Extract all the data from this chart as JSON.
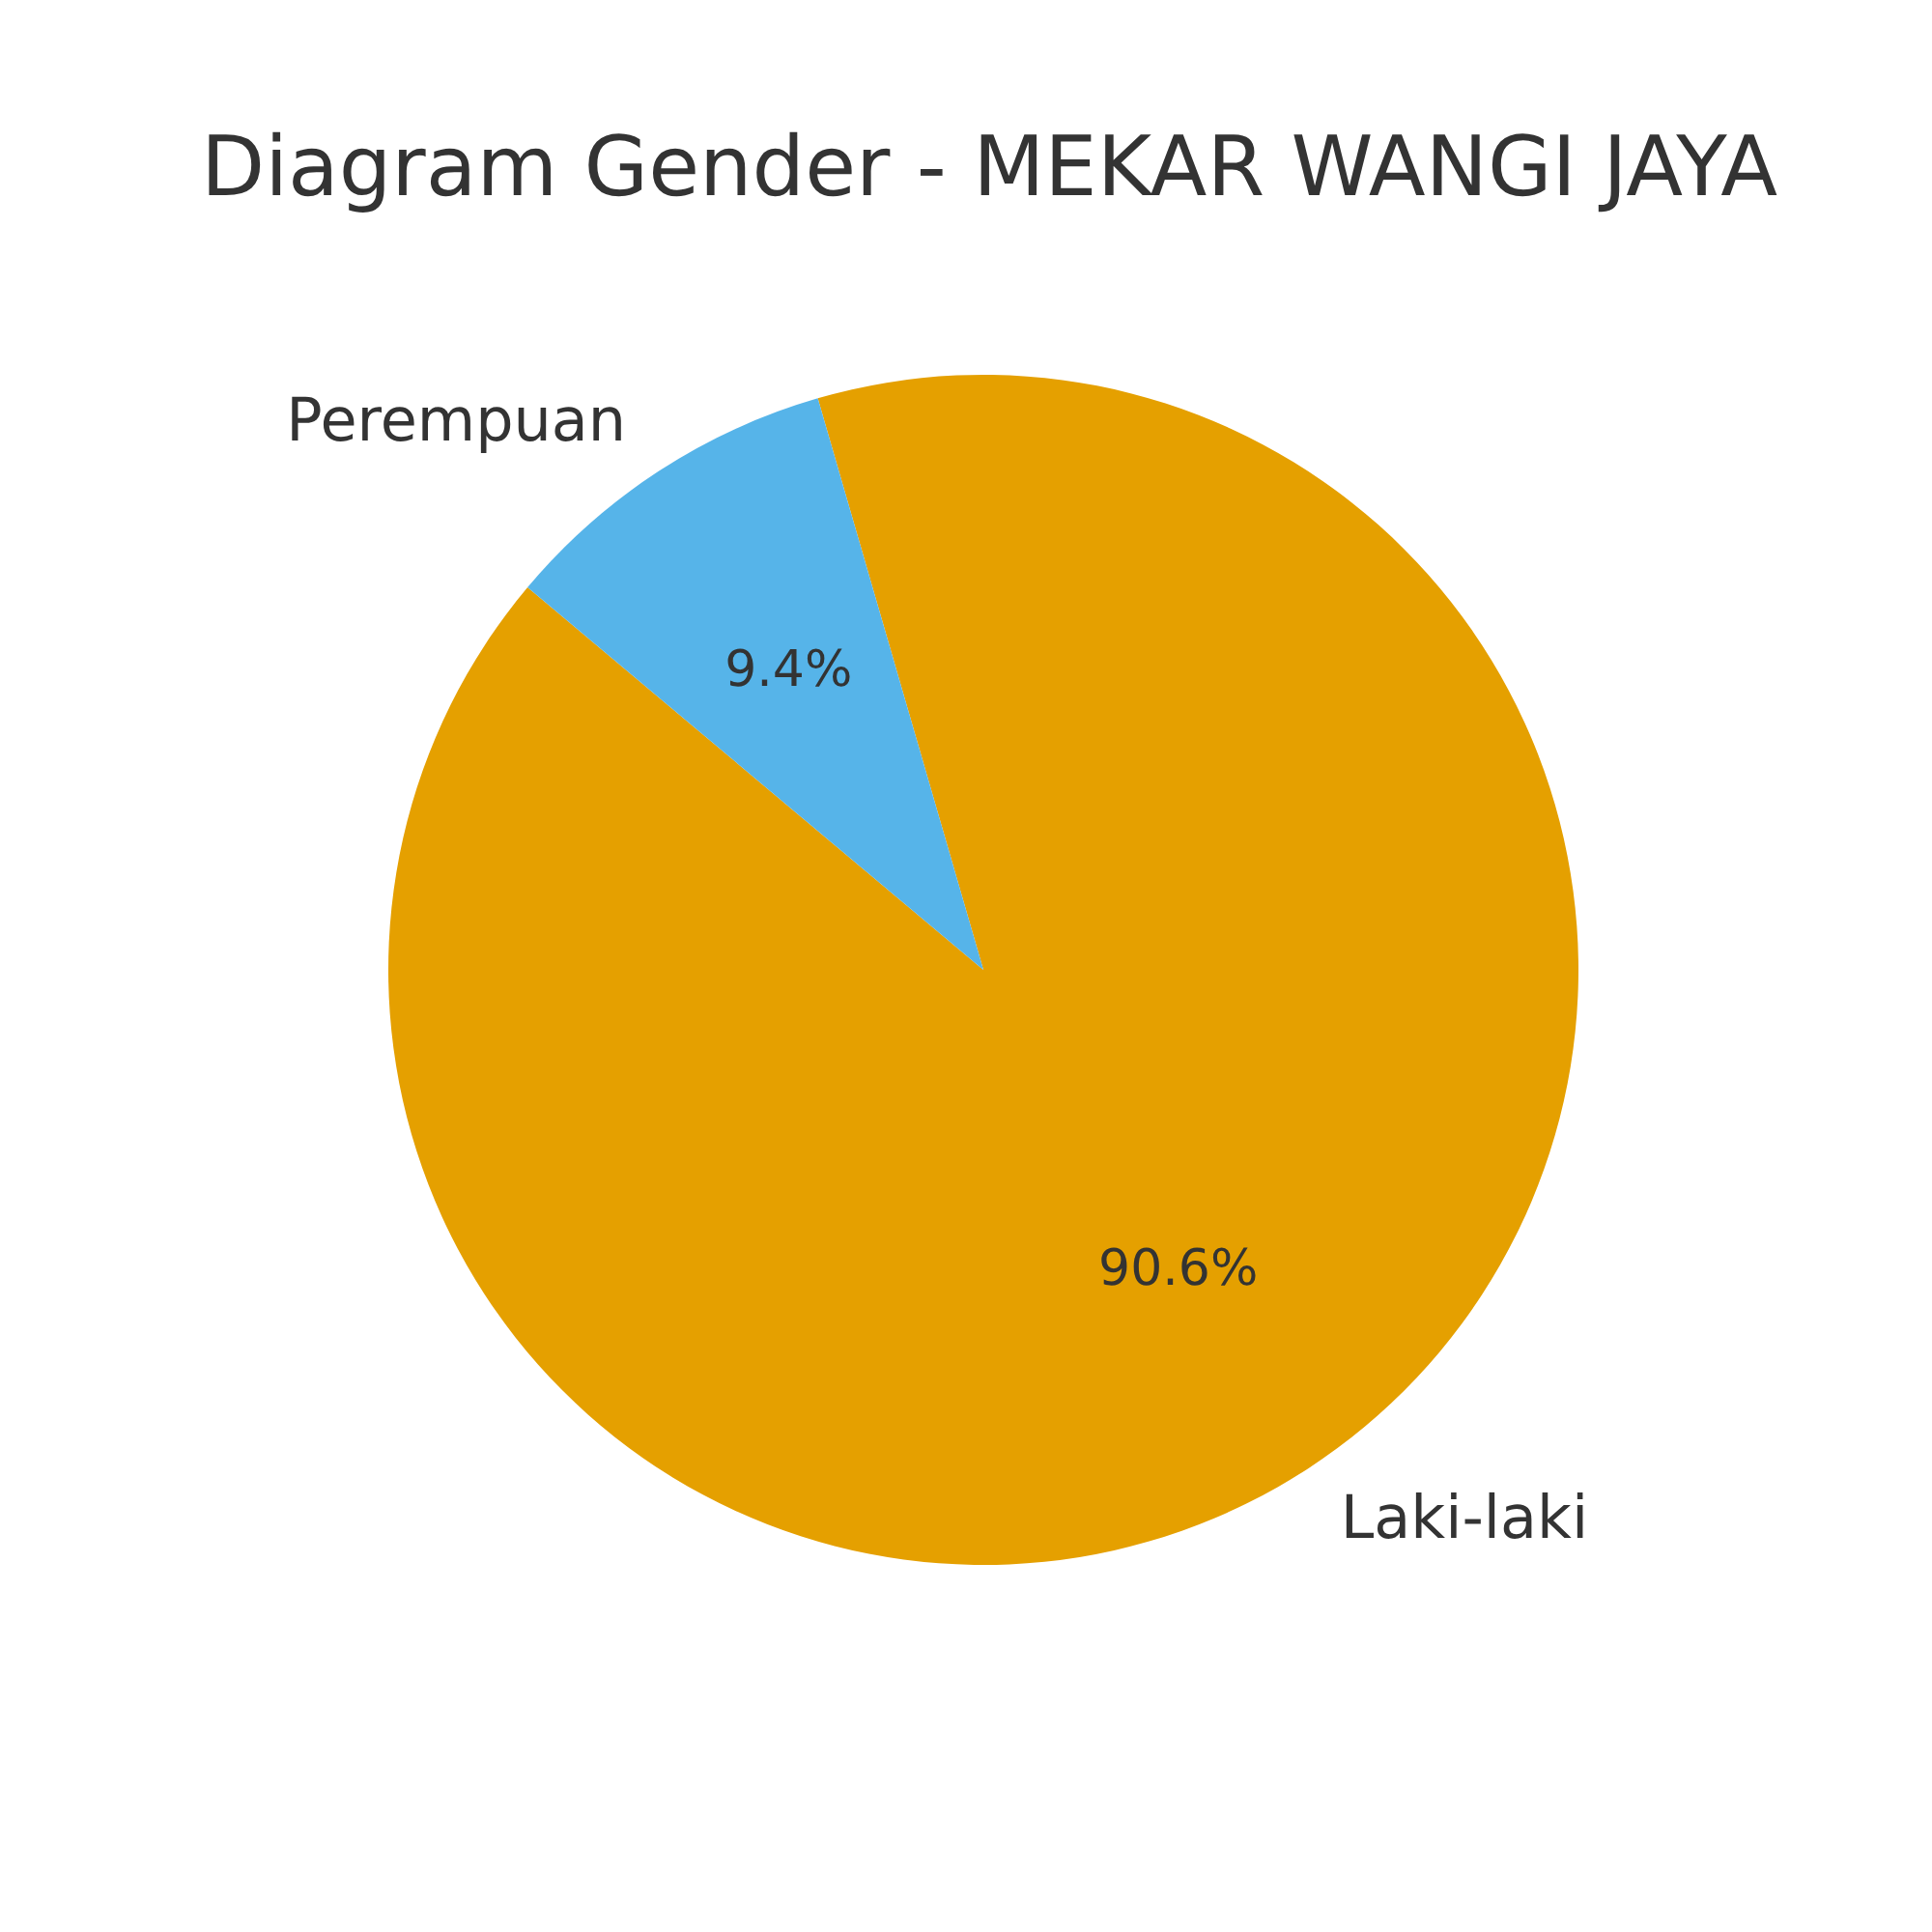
{
  "chart_data": {
    "type": "pie",
    "title": "Diagram Gender - MEKAR WANGI JAYA",
    "categories": [
      "Laki-laki",
      "Perempuan"
    ],
    "values": [
      90.6,
      9.4
    ],
    "value_labels": [
      "90.6%",
      "9.4%"
    ],
    "colors": [
      "#e5a000",
      "#56b4e9"
    ]
  }
}
